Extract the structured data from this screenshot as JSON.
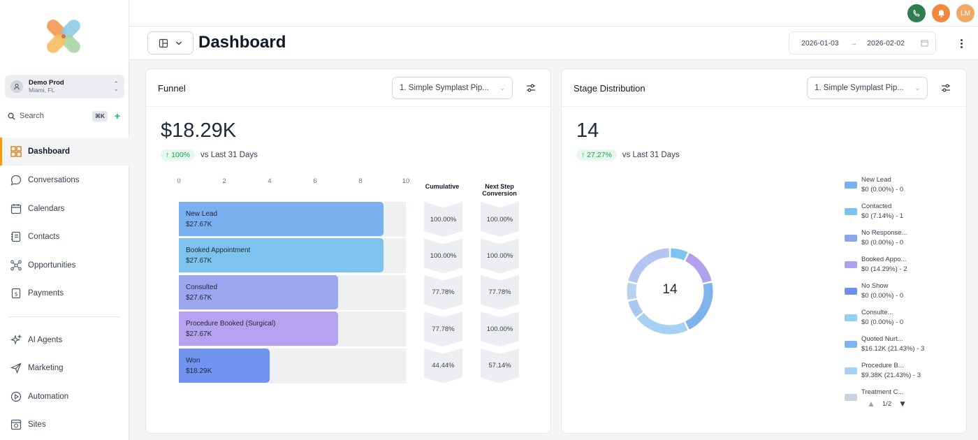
{
  "sidebar": {
    "account": {
      "name": "Demo Prod",
      "location": "Miami, FL"
    },
    "search": {
      "placeholder": "Search",
      "shortcut": "⌘K"
    },
    "items": [
      {
        "label": "Dashboard",
        "icon": "dashboard-icon"
      },
      {
        "label": "Conversations",
        "icon": "chat-icon"
      },
      {
        "label": "Calendars",
        "icon": "calendar-icon"
      },
      {
        "label": "Contacts",
        "icon": "contacts-icon"
      },
      {
        "label": "Opportunities",
        "icon": "opportunities-icon"
      },
      {
        "label": "Payments",
        "icon": "payments-icon"
      },
      {
        "label": "AI Agents",
        "icon": "sparkle-icon"
      },
      {
        "label": "Marketing",
        "icon": "send-icon"
      },
      {
        "label": "Automation",
        "icon": "automation-icon"
      },
      {
        "label": "Sites",
        "icon": "sites-icon"
      }
    ]
  },
  "topbar": {
    "user_initials": "LM",
    "colors": {
      "phone": "#2e7d4f",
      "bell": "#f0883e",
      "avatar": "#f0a868"
    }
  },
  "header": {
    "title": "Dashboard",
    "date_from": "2026-01-03",
    "date_to": "2026-02-02"
  },
  "funnel": {
    "title": "Funnel",
    "pipeline": "1. Simple Symplast Pip...",
    "total": "$18.29K",
    "delta_pct": "100%",
    "delta_label": "vs Last 31 Days",
    "axis_ticks": [
      "0",
      "2",
      "4",
      "6",
      "8",
      "10"
    ],
    "axis_max": 10,
    "col_cumulative": "Cumulative",
    "col_next_step": "Next Step Conversion",
    "stages": [
      {
        "name": "New Lead",
        "amount": "$27.67K",
        "count": 9,
        "cumulative": "100.00%",
        "next": "100.00%",
        "color": "#7aaff0"
      },
      {
        "name": "Booked Appointment",
        "amount": "$27.67K",
        "count": 9,
        "cumulative": "100.00%",
        "next": "100.00%",
        "color": "#7ec3ee"
      },
      {
        "name": "Consulted",
        "amount": "$27.67K",
        "count": 7,
        "cumulative": "77.78%",
        "next": "77.78%",
        "color": "#9aa6ee"
      },
      {
        "name": "Procedure Booked (Surgical)",
        "amount": "$27.67K",
        "count": 7,
        "cumulative": "77.78%",
        "next": "100.00%",
        "color": "#b3a3f0"
      },
      {
        "name": "Won",
        "amount": "$18.29K",
        "count": 4,
        "cumulative": "44.44%",
        "next": "57.14%",
        "color": "#6f93ef"
      }
    ]
  },
  "distribution": {
    "title": "Stage Distribution",
    "pipeline": "1. Simple Symplast Pip...",
    "total": "14",
    "delta_pct": "27.27%",
    "delta_label": "vs Last 31 Days",
    "center_label": "14",
    "legend": [
      {
        "name": "New Lead",
        "value": "$0 (0.00%) - 0",
        "color": "#7aaff0"
      },
      {
        "name": "Contacted",
        "value": "$0 (7.14%) - 1",
        "color": "#7ec3ee"
      },
      {
        "name": "No Response...",
        "value": "$0 (0.00%) - 0",
        "color": "#8fa3ea"
      },
      {
        "name": "Booked Appo...",
        "value": "$0 (14.29%) - 2",
        "color": "#b0a0ee"
      },
      {
        "name": "No Show",
        "value": "$0 (0.00%) - 0",
        "color": "#6f8fe8"
      },
      {
        "name": "Consulte...",
        "value": "$0 (0.00%) - 0",
        "color": "#92cff2"
      },
      {
        "name": "Quoted Nurt...",
        "value": "$16.12K (21.43%) - 3",
        "color": "#7fb3ee"
      },
      {
        "name": "Procedure B...",
        "value": "$9.38K (21.43%) - 3",
        "color": "#a6d1f3"
      },
      {
        "name": "Treatment C...",
        "value": "",
        "color": "#c9d3dc"
      }
    ],
    "slices": [
      {
        "value": 1,
        "color": "#7ec3ee"
      },
      {
        "value": 2,
        "color": "#b0a0ee"
      },
      {
        "value": 3,
        "color": "#7fb3ee"
      },
      {
        "value": 3,
        "color": "#a6d1f3"
      },
      {
        "value": 1,
        "color": "#a9c8ef"
      },
      {
        "value": 1,
        "color": "#b9d2f1"
      },
      {
        "value": 3,
        "color": "#b3c5f0"
      }
    ],
    "pager": "1/2"
  }
}
